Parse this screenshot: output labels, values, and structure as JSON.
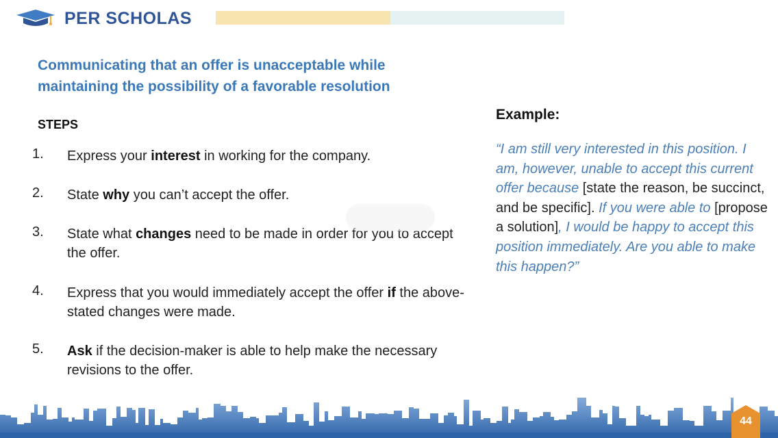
{
  "header": {
    "logo_text": "PER SCHOLAS",
    "bar_colors": [
      "#f6dfa0",
      "#e6f1f2"
    ]
  },
  "slide": {
    "subtitle_lines": [
      "Communicating that an offer is unacceptable while",
      "maintaining the possibility of a favorable resolution"
    ],
    "steps_heading": "STEPS",
    "steps": [
      {
        "num": "1.",
        "parts": [
          {
            "t": "Express your ",
            "b": false
          },
          {
            "t": "interest",
            "b": true
          },
          {
            "t": " in working for the company.",
            "b": false
          }
        ]
      },
      {
        "num": "2.",
        "parts": [
          {
            "t": "State ",
            "b": false
          },
          {
            "t": "why",
            "b": true
          },
          {
            "t": " you can’t accept the offer.",
            "b": false
          }
        ]
      },
      {
        "num": "3.",
        "parts": [
          {
            "t": "State what ",
            "b": false
          },
          {
            "t": "changes",
            "b": true
          },
          {
            "t": " need to be made in order for you to accept the offer.",
            "b": false
          }
        ]
      },
      {
        "num": "4.",
        "parts": [
          {
            "t": "Express that you would immediately accept the offer ",
            "b": false
          },
          {
            "t": "if",
            "b": true
          },
          {
            "t": " the above-stated changes were made.",
            "b": false
          }
        ]
      },
      {
        "num": "5.",
        "parts": [
          {
            "t": "Ask",
            "b": true
          },
          {
            "t": " if the decision-maker is able to help make the necessary revisions to the offer.",
            "b": false
          }
        ]
      }
    ],
    "example_heading": "Example:",
    "example_parts": [
      {
        "t": "“I am still very interested in this position.  I am, however, unable to accept this current offer because ",
        "i": true
      },
      {
        "t": "[state the reason, be succinct, and be specific].  ",
        "i": false
      },
      {
        "t": "If you were able to ",
        "i": true
      },
      {
        "t": "[propose a solution]",
        "i": false
      },
      {
        "t": ", I would be happy to accept this position immediately. Are you able to make this happen?”",
        "i": true
      }
    ],
    "page_number": "44"
  },
  "colors": {
    "title_blue": "#3a78b8",
    "logo_blue": "#2f5597",
    "quote_blue": "#4a7fb7",
    "badge_orange": "#e8922f",
    "skyline_blue": "#3f7cc4"
  }
}
